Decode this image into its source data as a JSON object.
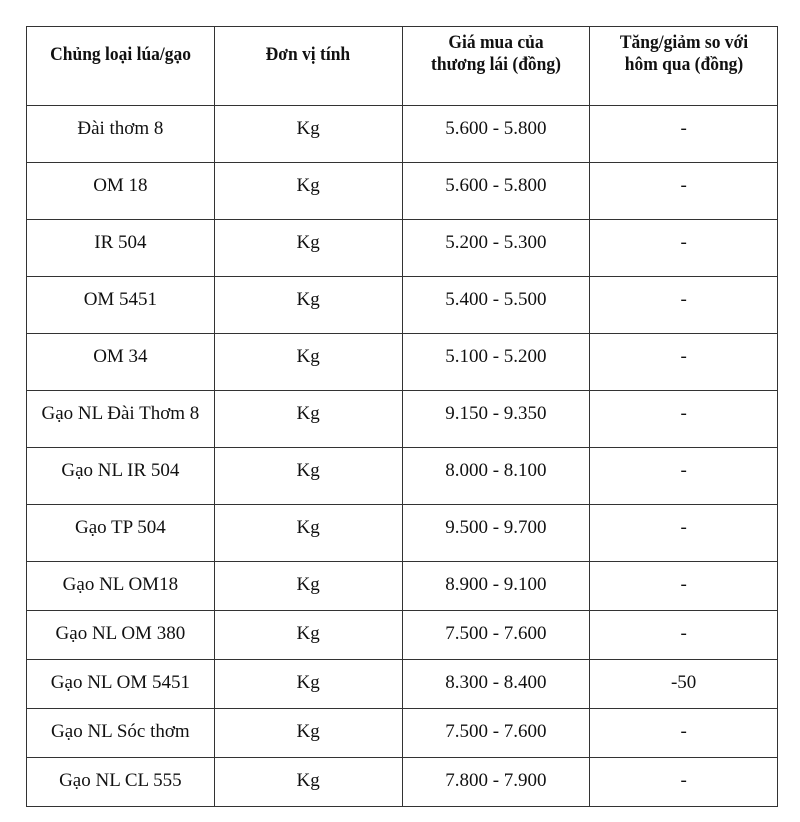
{
  "table": {
    "headers": [
      "Chủng loại lúa/gạo",
      "Đơn vị tính",
      "Giá mua của thương lái (đồng)",
      "Tăng/giảm so với hôm qua (đồng)"
    ],
    "rows": [
      [
        "Đài thơm 8",
        "Kg",
        "5.600 - 5.800",
        "-"
      ],
      [
        "OM 18",
        "Kg",
        "5.600 - 5.800",
        "-"
      ],
      [
        "IR 504",
        "Kg",
        "5.200 - 5.300",
        "-"
      ],
      [
        "OM 5451",
        "Kg",
        "5.400 - 5.500",
        "-"
      ],
      [
        "OM 34",
        "Kg",
        "5.100 - 5.200",
        "-"
      ],
      [
        "Gạo NL Đài Thơm 8",
        "Kg",
        "9.150 - 9.350",
        "-"
      ],
      [
        "Gạo NL IR 504",
        "Kg",
        "8.000 - 8.100",
        "-"
      ],
      [
        "Gạo TP 504",
        "Kg",
        "9.500 - 9.700",
        "-"
      ],
      [
        "Gạo NL OM18",
        "Kg",
        "8.900 - 9.100",
        "-"
      ],
      [
        "Gạo NL OM 380",
        "Kg",
        "7.500 - 7.600",
        "-"
      ],
      [
        "Gạo NL OM 5451",
        "Kg",
        "8.300 - 8.400",
        "-50"
      ],
      [
        "Gạo NL Sóc thơm",
        "Kg",
        "7.500 - 7.600",
        "-"
      ],
      [
        "Gạo NL CL 555",
        "Kg",
        "7.800 - 7.900",
        "-"
      ]
    ]
  }
}
